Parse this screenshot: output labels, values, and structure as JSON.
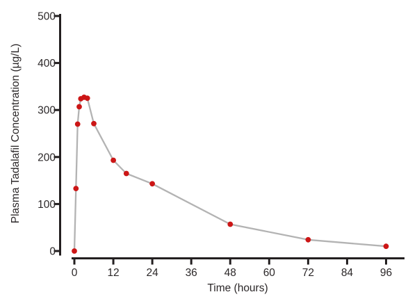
{
  "figure": {
    "background": "#ffffff"
  },
  "chart_data": {
    "type": "line",
    "title": "",
    "xlabel": "Time (hours)",
    "ylabel": "Plasma Tadalafil Concentration (µg/L)",
    "series": [
      {
        "name": "plasma-tadalafil-concentration",
        "x": [
          0,
          0.5,
          1,
          1.5,
          2,
          3,
          4,
          6,
          12,
          16,
          24,
          48,
          72,
          96
        ],
        "y": [
          0,
          133,
          270,
          307,
          324,
          327,
          325,
          271,
          193,
          165,
          143,
          57,
          24,
          10
        ]
      }
    ],
    "xlim": [
      0,
      96
    ],
    "ylim": [
      0,
      500
    ],
    "x_ticks": [
      0,
      12,
      24,
      36,
      48,
      60,
      72,
      84,
      96
    ],
    "y_ticks": [
      0,
      100,
      200,
      300,
      400,
      500
    ],
    "grid": false,
    "legend": false,
    "marker_shape": "circle",
    "colors": {
      "marker": "#cc1616",
      "line": "#b3b3b3",
      "axis": "#231f20",
      "text": "#2b2728"
    }
  }
}
